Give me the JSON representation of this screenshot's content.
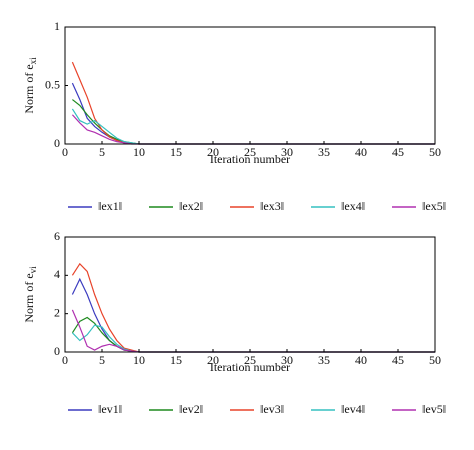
{
  "chart_data": [
    {
      "type": "line",
      "xlabel": "Iteration number",
      "ylabel": "Norm of e",
      "ylabel_sub": "xi",
      "x": [
        1,
        2,
        3,
        4,
        5,
        6,
        7,
        8,
        9,
        10,
        11,
        50
      ],
      "xlim": [
        0,
        50
      ],
      "xticks": [
        0,
        5,
        10,
        15,
        20,
        25,
        30,
        35,
        40,
        45,
        50
      ],
      "ylim": [
        0,
        1
      ],
      "yticks": [
        0,
        0.5,
        1
      ],
      "series": [
        {
          "name": "‖ex1‖",
          "color": "#3b3bbf",
          "values": [
            0.52,
            0.38,
            0.22,
            0.15,
            0.1,
            0.06,
            0.03,
            0.01,
            0.005,
            0,
            0,
            0
          ]
        },
        {
          "name": "‖ex2‖",
          "color": "#1f8a1f",
          "values": [
            0.38,
            0.33,
            0.25,
            0.18,
            0.12,
            0.07,
            0.04,
            0.02,
            0.01,
            0,
            0,
            0
          ]
        },
        {
          "name": "‖ex3‖",
          "color": "#e8432a",
          "values": [
            0.7,
            0.55,
            0.4,
            0.22,
            0.12,
            0.06,
            0.03,
            0.01,
            0.005,
            0,
            0,
            0
          ]
        },
        {
          "name": "‖ex4‖",
          "color": "#35c0c0",
          "values": [
            0.3,
            0.2,
            0.17,
            0.2,
            0.15,
            0.1,
            0.05,
            0.02,
            0.01,
            0,
            0,
            0
          ]
        },
        {
          "name": "‖ex5‖",
          "color": "#b030b0",
          "values": [
            0.25,
            0.18,
            0.12,
            0.1,
            0.07,
            0.04,
            0.02,
            0.01,
            0,
            0,
            0,
            0
          ]
        }
      ]
    },
    {
      "type": "line",
      "xlabel": "Iteration number",
      "ylabel": "Norm of e",
      "ylabel_sub": "vi",
      "x": [
        1,
        2,
        3,
        4,
        5,
        6,
        7,
        8,
        9,
        10,
        11,
        50
      ],
      "xlim": [
        0,
        50
      ],
      "xticks": [
        0,
        5,
        10,
        15,
        20,
        25,
        30,
        35,
        40,
        45,
        50
      ],
      "ylim": [
        0,
        6
      ],
      "yticks": [
        0,
        2,
        4,
        6
      ],
      "series": [
        {
          "name": "‖ev1‖",
          "color": "#3b3bbf",
          "values": [
            3.0,
            3.8,
            3.0,
            2.0,
            1.2,
            0.6,
            0.3,
            0.1,
            0.05,
            0,
            0,
            0
          ]
        },
        {
          "name": "‖ev2‖",
          "color": "#1f8a1f",
          "values": [
            1.0,
            1.6,
            1.8,
            1.5,
            1.0,
            0.6,
            0.3,
            0.1,
            0.05,
            0,
            0,
            0
          ]
        },
        {
          "name": "‖ev3‖",
          "color": "#e8432a",
          "values": [
            4.0,
            4.6,
            4.2,
            3.0,
            2.0,
            1.2,
            0.6,
            0.2,
            0.1,
            0,
            0,
            0
          ]
        },
        {
          "name": "‖ev4‖",
          "color": "#35c0c0",
          "values": [
            1.0,
            0.6,
            0.9,
            1.4,
            1.3,
            0.8,
            0.4,
            0.15,
            0.05,
            0,
            0,
            0
          ]
        },
        {
          "name": "‖ev5‖",
          "color": "#b030b0",
          "values": [
            2.2,
            1.3,
            0.3,
            0.1,
            0.3,
            0.4,
            0.3,
            0.1,
            0.05,
            0,
            0,
            0
          ]
        }
      ]
    }
  ]
}
